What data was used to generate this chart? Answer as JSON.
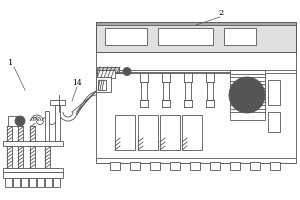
{
  "bg_color": "#ffffff",
  "lc": "#555555",
  "lw": 0.6,
  "fig_w": 3.0,
  "fig_h": 2.0,
  "dpi": 100
}
